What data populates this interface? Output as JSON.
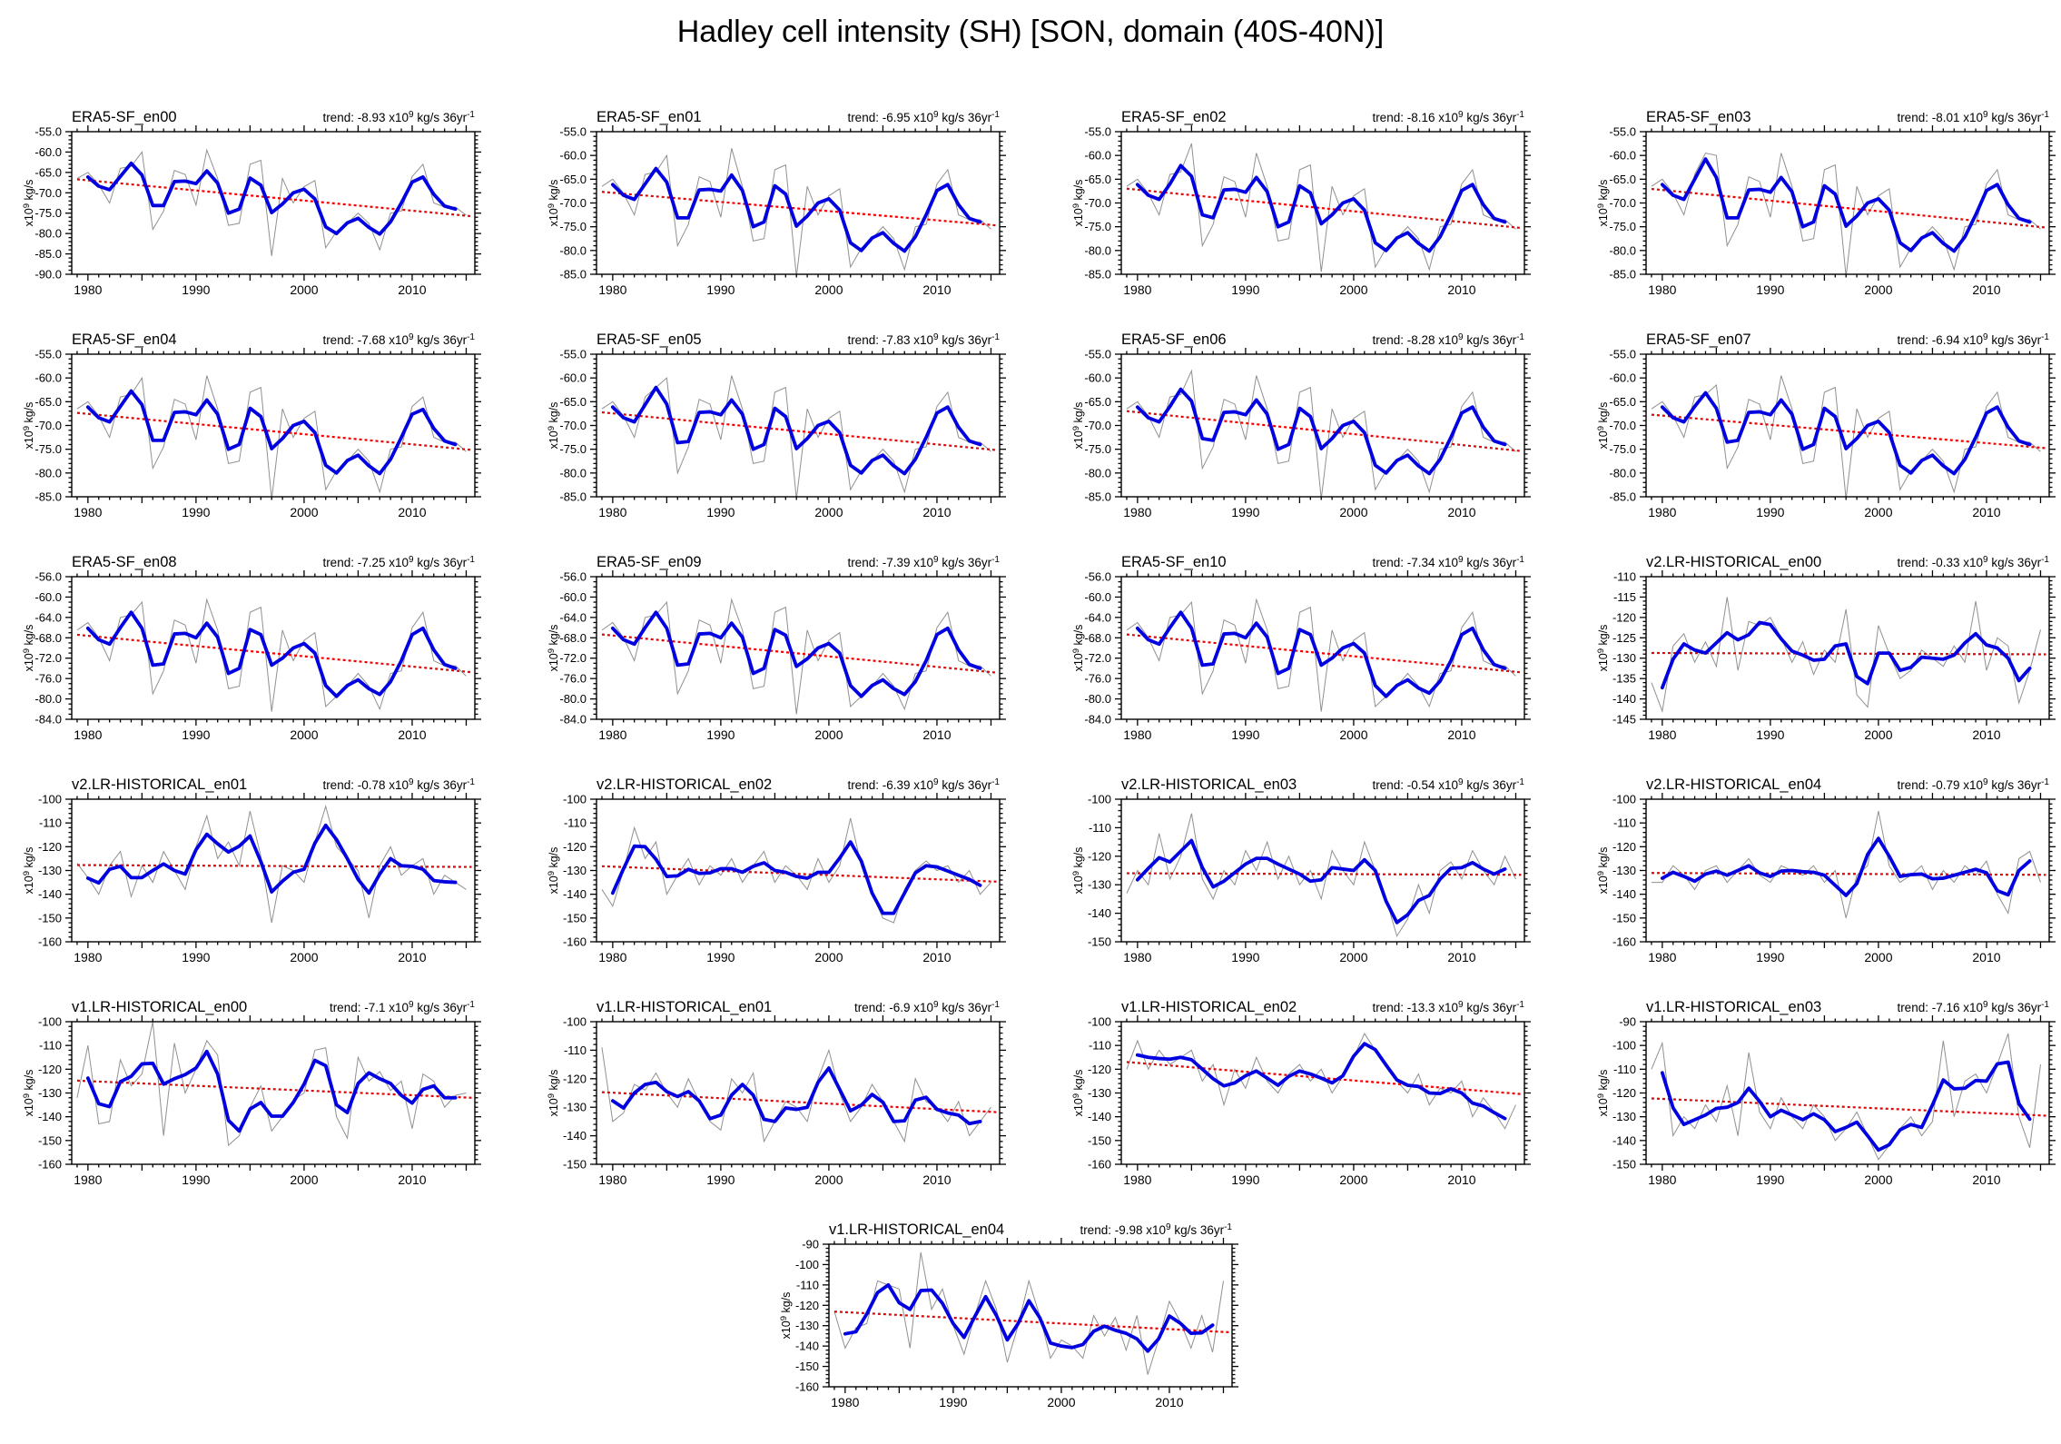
{
  "page": {
    "title": "Hadley cell intensity (SH) [SON, domain (40S-40N)]"
  },
  "labels": {
    "trend_prefix": "trend:",
    "scale": "x10",
    "scale_exp": "9",
    "unit": "kg/s",
    "per": "36yr",
    "per_exp": "-1",
    "ylabel_scale": "x10",
    "ylabel_exp": "9",
    "ylabel_unit": "kg/s"
  },
  "colors": {
    "annual": "#909090",
    "smoothed": "#0000e0",
    "trend": "#ee0000",
    "axis": "#000000"
  },
  "x_axis": {
    "start_year": 1979,
    "end_year": 2015,
    "tick_labels": [
      1980,
      1990,
      2000,
      2010
    ]
  },
  "chart_data": [
    {
      "type": "line",
      "title": "ERA5-SF_en00",
      "trend": -8.93,
      "ylim": [
        -90,
        -55
      ],
      "ystep": 5,
      "yminor": 1,
      "ydec": 1,
      "annual": [
        -66.5,
        -65,
        -68,
        -72.5,
        -64,
        -63.5,
        -60,
        -79,
        -74.5,
        -64.5,
        -65.5,
        -73,
        -59.5,
        -66.5,
        -78,
        -77.5,
        -63,
        -62,
        -85.5,
        -66.5,
        -72.5,
        -68.5,
        -67,
        -83.5,
        -79.5,
        -77.5,
        -75,
        -77.5,
        -84,
        -75,
        -74.5,
        -66,
        -63,
        -72.5,
        -73.5,
        -73.5,
        -75.5
      ]
    },
    {
      "type": "line",
      "title": "ERA5-SF_en01",
      "trend": -6.95,
      "ylim": [
        -85,
        -55
      ],
      "ystep": 5,
      "yminor": 1,
      "ydec": 1,
      "annual": [
        -66.5,
        -65,
        -68,
        -72.5,
        -64,
        -63.5,
        -60,
        -79,
        -74.5,
        -64.5,
        -65.5,
        -73,
        -58.5,
        -66.5,
        -78,
        -77.5,
        -63,
        -62,
        -85.5,
        -66.5,
        -72.5,
        -68.5,
        -67,
        -83.5,
        -79.5,
        -77.5,
        -75,
        -77.5,
        -84,
        -75,
        -74.5,
        -66,
        -63,
        -72.5,
        -73.5,
        -73.5,
        -75.5
      ]
    },
    {
      "type": "line",
      "title": "ERA5-SF_en02",
      "trend": -8.16,
      "ylim": [
        -85,
        -55
      ],
      "ystep": 5,
      "yminor": 1,
      "ydec": 1,
      "annual": [
        -66.5,
        -65,
        -68,
        -72.5,
        -64,
        -63.5,
        -57.5,
        -79,
        -74.5,
        -64.5,
        -65.5,
        -73,
        -59.5,
        -66.5,
        -78,
        -77.5,
        -63,
        -62,
        -84.5,
        -66.5,
        -72.5,
        -68.5,
        -67,
        -83.5,
        -79.5,
        -77.5,
        -75,
        -77.5,
        -84,
        -75,
        -74.5,
        -66,
        -63,
        -72.5,
        -73.5,
        -73.5,
        -75.5
      ]
    },
    {
      "type": "line",
      "title": "ERA5-SF_en03",
      "trend": -8.01,
      "ylim": [
        -85,
        -55
      ],
      "ystep": 5,
      "yminor": 1,
      "ydec": 1,
      "annual": [
        -66.5,
        -65,
        -68,
        -72.5,
        -64,
        -59.5,
        -60,
        -79,
        -74.5,
        -64.5,
        -65.5,
        -73,
        -59.5,
        -66.5,
        -78,
        -77.5,
        -63,
        -62,
        -85.5,
        -66.5,
        -72.5,
        -68.5,
        -67,
        -83.5,
        -79.5,
        -77.5,
        -75,
        -77.5,
        -84,
        -75,
        -74.5,
        -66,
        -63,
        -72.5,
        -73.5,
        -73.5,
        -75.5
      ]
    },
    {
      "type": "line",
      "title": "ERA5-SF_en04",
      "trend": -7.68,
      "ylim": [
        -85,
        -55
      ],
      "ystep": 5,
      "yminor": 1,
      "ydec": 1,
      "annual": [
        -66.5,
        -65,
        -68,
        -72.5,
        -64,
        -63.5,
        -60,
        -79,
        -74.5,
        -64.5,
        -65.5,
        -73,
        -59.5,
        -66.5,
        -78,
        -77.5,
        -63,
        -62,
        -85.5,
        -66.5,
        -72.5,
        -68.5,
        -67,
        -83.5,
        -79.5,
        -77.5,
        -75,
        -77.5,
        -84,
        -75,
        -74.5,
        -66,
        -64,
        -72.5,
        -73.5,
        -73.5,
        -75.5
      ]
    },
    {
      "type": "line",
      "title": "ERA5-SF_en05",
      "trend": -7.83,
      "ylim": [
        -85,
        -55
      ],
      "ystep": 5,
      "yminor": 1,
      "ydec": 1,
      "annual": [
        -66.5,
        -65,
        -68,
        -72.5,
        -64,
        -62,
        -60,
        -80,
        -74.5,
        -64.5,
        -65.5,
        -73,
        -59.5,
        -66.5,
        -78,
        -77.5,
        -63,
        -62,
        -85.5,
        -66.5,
        -72.5,
        -68.5,
        -67,
        -83.5,
        -79.5,
        -77.5,
        -75,
        -77.5,
        -84,
        -75,
        -74.5,
        -66,
        -63,
        -72.5,
        -73.5,
        -73.5,
        -75.5
      ]
    },
    {
      "type": "line",
      "title": "ERA5-SF_en06",
      "trend": -8.28,
      "ylim": [
        -85,
        -55
      ],
      "ystep": 5,
      "yminor": 1,
      "ydec": 1,
      "annual": [
        -66.5,
        -65,
        -68,
        -72.5,
        -64,
        -63.5,
        -58.5,
        -79,
        -74.5,
        -64.5,
        -65.5,
        -73,
        -59.5,
        -66.5,
        -78,
        -77.5,
        -63,
        -62,
        -85.5,
        -66.5,
        -72.5,
        -68.5,
        -67,
        -83.5,
        -79.5,
        -77.5,
        -75,
        -77.5,
        -84,
        -75,
        -74.5,
        -66,
        -63,
        -72.5,
        -73.5,
        -73.5,
        -75.5
      ]
    },
    {
      "type": "line",
      "title": "ERA5-SF_en07",
      "trend": -6.94,
      "ylim": [
        -85,
        -55
      ],
      "ystep": 5,
      "yminor": 1,
      "ydec": 1,
      "annual": [
        -66.5,
        -65,
        -68,
        -72.5,
        -64,
        -63.5,
        -61.5,
        -79,
        -74.5,
        -64.5,
        -65.5,
        -73,
        -59.5,
        -66.5,
        -78,
        -77.5,
        -63,
        -62,
        -85.5,
        -66.5,
        -72.5,
        -68.5,
        -67,
        -83.5,
        -79.5,
        -77.5,
        -75,
        -77.5,
        -84,
        -75,
        -74.5,
        -66,
        -63,
        -72.5,
        -73.5,
        -73.5,
        -75.5
      ]
    },
    {
      "type": "line",
      "title": "ERA5-SF_en08",
      "trend": -7.25,
      "ylim": [
        -84,
        -56
      ],
      "ystep": 4,
      "yminor": 1,
      "ydec": 1,
      "annual": [
        -66.5,
        -65,
        -68,
        -72.5,
        -64,
        -63.5,
        -61,
        -79,
        -74.5,
        -64.5,
        -65.5,
        -73,
        -60.5,
        -66.5,
        -78,
        -77.5,
        -63,
        -62,
        -82.5,
        -66.5,
        -72.5,
        -68.5,
        -67,
        -81.5,
        -79.5,
        -77.5,
        -75,
        -77.5,
        -82,
        -75,
        -74.5,
        -66,
        -63,
        -72.5,
        -73.5,
        -73.5,
        -75.5
      ]
    },
    {
      "type": "line",
      "title": "ERA5-SF_en09",
      "trend": -7.39,
      "ylim": [
        -84,
        -56
      ],
      "ystep": 4,
      "yminor": 1,
      "ydec": 1,
      "annual": [
        -66.5,
        -65,
        -68,
        -72.5,
        -64,
        -63.5,
        -61,
        -79,
        -74.5,
        -64.5,
        -65.5,
        -73,
        -60.5,
        -66.5,
        -78,
        -77.5,
        -63,
        -62,
        -83,
        -66.5,
        -72.5,
        -68.5,
        -67,
        -81.5,
        -79.5,
        -77.5,
        -75,
        -77.5,
        -82,
        -75,
        -74.5,
        -66,
        -63,
        -72.5,
        -73.5,
        -73.5,
        -75.5
      ]
    },
    {
      "type": "line",
      "title": "ERA5-SF_en10",
      "trend": -7.34,
      "ylim": [
        -84,
        -56
      ],
      "ystep": 4,
      "yminor": 1,
      "ydec": 1,
      "annual": [
        -66.5,
        -65,
        -68,
        -72.5,
        -64,
        -63.5,
        -61,
        -79,
        -74.5,
        -64.5,
        -65.5,
        -73,
        -60.5,
        -66.5,
        -78,
        -77.5,
        -63,
        -62,
        -82.5,
        -66.5,
        -72.5,
        -68.5,
        -67,
        -81.5,
        -79.5,
        -77.5,
        -75,
        -77.5,
        -81.5,
        -75,
        -74.5,
        -66,
        -63,
        -72.5,
        -73.5,
        -73.5,
        -75.5
      ]
    },
    {
      "type": "line",
      "title": "v2.LR-HISTORICAL_en00",
      "trend": -0.33,
      "ylim": [
        -145,
        -110
      ],
      "ystep": 5,
      "yminor": 1,
      "ydec": 0,
      "annual": [
        -136,
        -143,
        -127,
        -124,
        -131,
        -126,
        -132,
        -115,
        -133,
        -121,
        -122,
        -120,
        -125,
        -131,
        -126,
        -134,
        -128,
        -131,
        -118,
        -139,
        -142,
        -122,
        -129,
        -135,
        -133,
        -128,
        -130,
        -132,
        -127,
        -131,
        -116,
        -133,
        -125,
        -127,
        -141,
        -133,
        -123
      ]
    },
    {
      "type": "line",
      "title": "v2.LR-HISTORICAL_en01",
      "trend": -0.78,
      "ylim": [
        -160,
        -100
      ],
      "ystep": 10,
      "yminor": 2,
      "ydec": 0,
      "annual": [
        -127,
        -133,
        -140,
        -128,
        -122,
        -141,
        -128,
        -135,
        -122,
        -130,
        -138,
        -120,
        -107,
        -125,
        -118,
        -128,
        -105,
        -124,
        -152,
        -128,
        -130,
        -135,
        -118,
        -103,
        -120,
        -125,
        -130,
        -150,
        -128,
        -120,
        -132,
        -128,
        -125,
        -140,
        -132,
        -135,
        -138
      ]
    },
    {
      "type": "line",
      "title": "v2.LR-HISTORICAL_en02",
      "trend": -6.39,
      "ylim": [
        -160,
        -100
      ],
      "ystep": 10,
      "yminor": 2,
      "ydec": 0,
      "annual": [
        -138,
        -145,
        -130,
        -112,
        -125,
        -118,
        -140,
        -132,
        -125,
        -136,
        -128,
        -132,
        -125,
        -135,
        -128,
        -122,
        -135,
        -128,
        -132,
        -138,
        -125,
        -135,
        -128,
        -108,
        -128,
        -140,
        -150,
        -152,
        -138,
        -130,
        -126,
        -130,
        -128,
        -135,
        -130,
        -140,
        -135
      ]
    },
    {
      "type": "line",
      "title": "v2.LR-HISTORICAL_en03",
      "trend": -0.54,
      "ylim": [
        -150,
        -100
      ],
      "ystep": 10,
      "yminor": 2,
      "ydec": 0,
      "annual": [
        -133,
        -125,
        -130,
        -112,
        -128,
        -120,
        -105,
        -128,
        -135,
        -125,
        -130,
        -118,
        -125,
        -115,
        -128,
        -120,
        -130,
        -125,
        -135,
        -118,
        -125,
        -130,
        -115,
        -125,
        -135,
        -148,
        -142,
        -130,
        -140,
        -125,
        -122,
        -128,
        -118,
        -125,
        -130,
        -120,
        -128
      ]
    },
    {
      "type": "line",
      "title": "v2.LR-HISTORICAL_en04",
      "trend": -0.79,
      "ylim": [
        -160,
        -100
      ],
      "ystep": 10,
      "yminor": 2,
      "ydec": 0,
      "annual": [
        -135,
        -135,
        -128,
        -132,
        -138,
        -130,
        -128,
        -135,
        -130,
        -125,
        -132,
        -135,
        -128,
        -130,
        -132,
        -128,
        -135,
        -130,
        -150,
        -132,
        -128,
        -105,
        -128,
        -135,
        -132,
        -128,
        -138,
        -130,
        -135,
        -128,
        -132,
        -126,
        -140,
        -148,
        -125,
        -122,
        -135
      ]
    },
    {
      "type": "line",
      "title": "v1.LR-HISTORICAL_en00",
      "trend": -7.1,
      "ylim": [
        -160,
        -100
      ],
      "ystep": 10,
      "yminor": 2,
      "ydec": 0,
      "annual": [
        -132,
        -110,
        -143,
        -142,
        -116,
        -127,
        -122,
        -100,
        -148,
        -109,
        -130,
        -120,
        -108,
        -114,
        -152,
        -148,
        -136,
        -127,
        -146,
        -140,
        -133,
        -130,
        -112,
        -111,
        -140,
        -149,
        -115,
        -125,
        -121,
        -129,
        -125,
        -145,
        -122,
        -125,
        -136,
        -131,
        -130
      ]
    },
    {
      "type": "line",
      "title": "v1.LR-HISTORICAL_en01",
      "trend": -6.9,
      "ylim": [
        -150,
        -100
      ],
      "ystep": 10,
      "yminor": 2,
      "ydec": 0,
      "annual": [
        -109,
        -135,
        -132,
        -122,
        -124,
        -118,
        -125,
        -130,
        -120,
        -128,
        -135,
        -138,
        -120,
        -125,
        -118,
        -142,
        -135,
        -128,
        -130,
        -135,
        -120,
        -110,
        -125,
        -135,
        -130,
        -122,
        -128,
        -135,
        -142,
        -120,
        -128,
        -130,
        -135,
        -128,
        -140,
        -135,
        -130
      ]
    },
    {
      "type": "line",
      "title": "v1.LR-HISTORICAL_en02",
      "trend": -13.3,
      "ylim": [
        -160,
        -100
      ],
      "ystep": 10,
      "yminor": 2,
      "ydec": 0,
      "annual": [
        -120,
        -108,
        -120,
        -112,
        -118,
        -115,
        -112,
        -125,
        -118,
        -135,
        -120,
        -128,
        -115,
        -125,
        -130,
        -122,
        -118,
        -125,
        -120,
        -130,
        -123,
        -115,
        -105,
        -112,
        -118,
        -125,
        -130,
        -122,
        -135,
        -128,
        -130,
        -125,
        -140,
        -132,
        -138,
        -145,
        -135
      ]
    },
    {
      "type": "line",
      "title": "v1.LR-HISTORICAL_en03",
      "trend": -7.16,
      "ylim": [
        -150,
        -90
      ],
      "ystep": 10,
      "yminor": 2,
      "ydec": 0,
      "annual": [
        -110,
        -99,
        -138,
        -130,
        -135,
        -125,
        -132,
        -117,
        -138,
        -103,
        -128,
        -135,
        -122,
        -130,
        -135,
        -125,
        -130,
        -140,
        -135,
        -128,
        -138,
        -148,
        -142,
        -135,
        -130,
        -138,
        -132,
        -98,
        -130,
        -115,
        -112,
        -120,
        -108,
        -95,
        -130,
        -143,
        -108
      ]
    },
    {
      "type": "line",
      "title": "v1.LR-HISTORICAL_en04",
      "trend": -9.98,
      "ylim": [
        -160,
        -90
      ],
      "ystep": 10,
      "yminor": 2,
      "ydec": 0,
      "annual": [
        -123,
        -141,
        -131,
        -129,
        -108,
        -110,
        -112,
        -141,
        -94,
        -122,
        -112,
        -130,
        -144,
        -125,
        -108,
        -122,
        -148,
        -130,
        -108,
        -125,
        -146,
        -137,
        -140,
        -146,
        -125,
        -135,
        -126,
        -142,
        -125,
        -154,
        -137,
        -118,
        -128,
        -141,
        -125,
        -143,
        -108
      ]
    }
  ]
}
